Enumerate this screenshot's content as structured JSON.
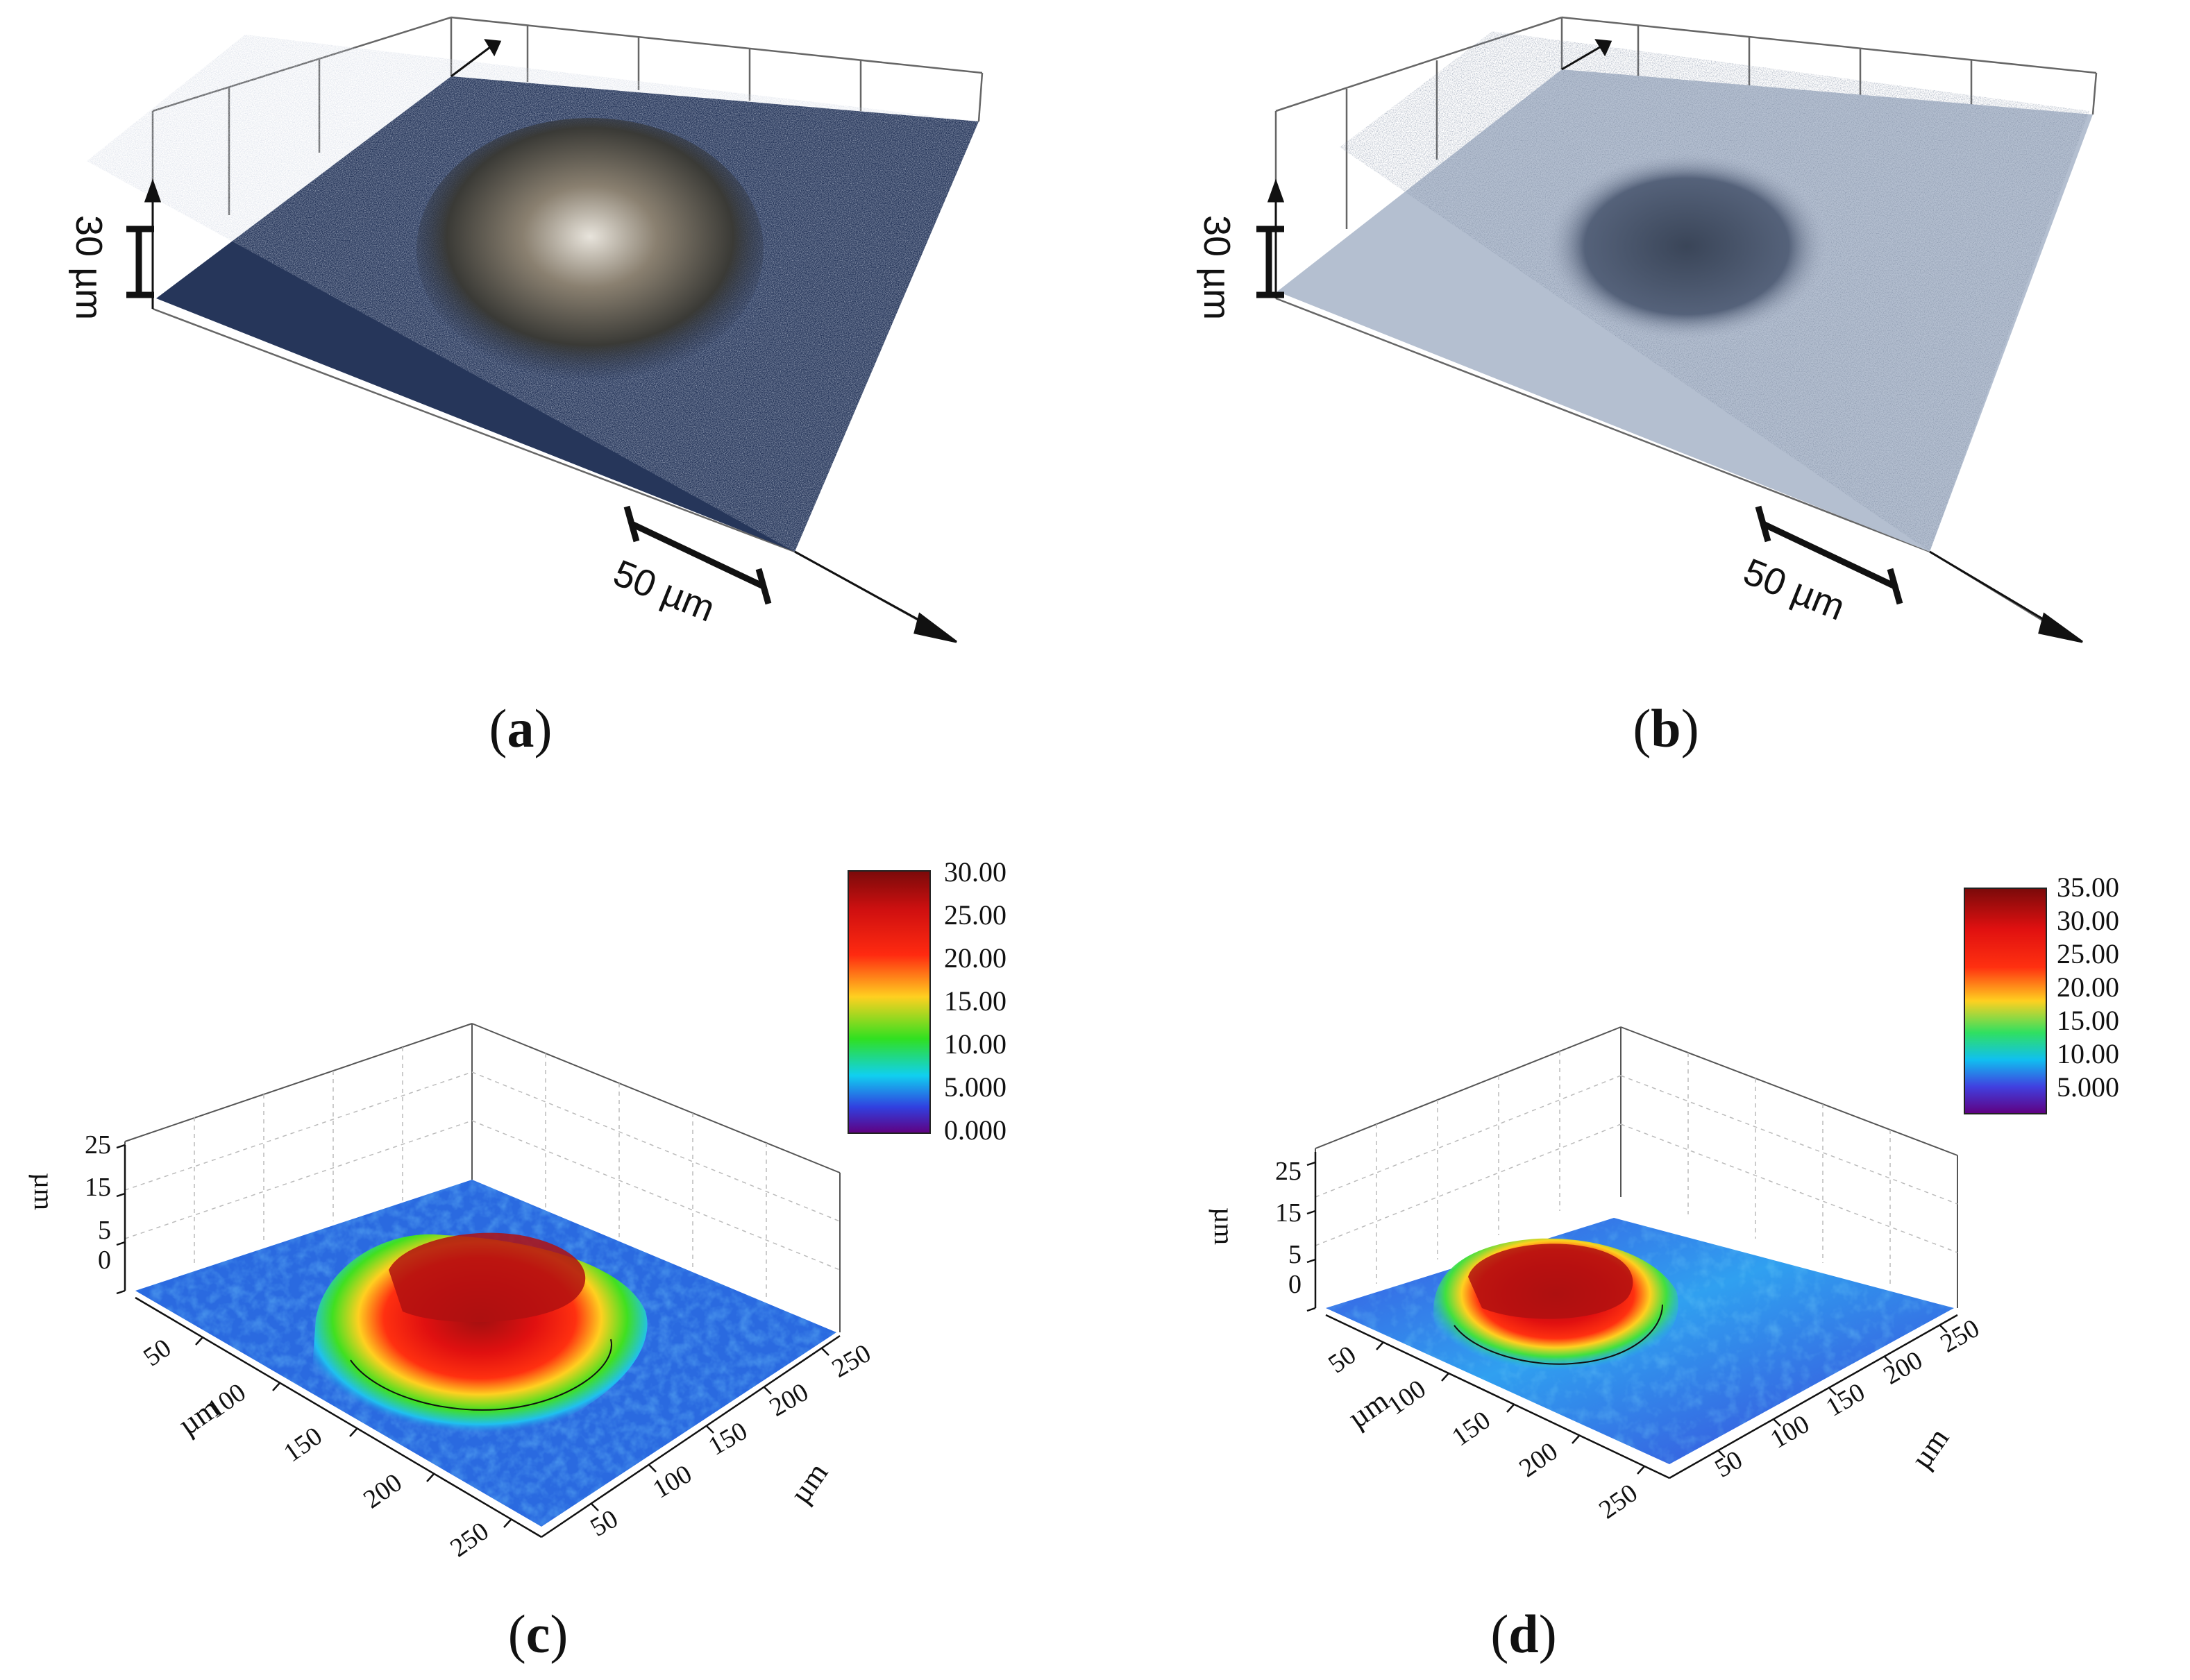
{
  "panels": [
    {
      "id": "a",
      "caption_open": "(",
      "caption_letter": "a",
      "caption_close": ")",
      "scale_z": "30 µm",
      "scale_xy": "50 µm"
    },
    {
      "id": "b",
      "caption_open": "(",
      "caption_letter": "b",
      "caption_close": ")",
      "scale_z": "30 µm",
      "scale_xy": "50 µm"
    },
    {
      "id": "c",
      "caption_open": "(",
      "caption_letter": "c",
      "caption_close": ")",
      "z_ticks": [
        "0",
        "5",
        "15",
        "25"
      ],
      "z_unit": "µm",
      "x_ticks": [
        "50",
        "100",
        "150",
        "200",
        "250"
      ],
      "x_unit": "µm",
      "y_ticks": [
        "50",
        "100",
        "150",
        "200",
        "250"
      ],
      "y_unit": "µm",
      "colorbar": [
        "30.00",
        "25.00",
        "20.00",
        "15.00",
        "10.00",
        "5.000",
        "0.000"
      ]
    },
    {
      "id": "d",
      "caption_open": "(",
      "caption_letter": "d",
      "caption_close": ")",
      "z_ticks": [
        "0",
        "5",
        "15",
        "25"
      ],
      "z_unit": "µm",
      "x_ticks": [
        "50",
        "100",
        "150",
        "200",
        "250"
      ],
      "x_unit": "µm",
      "y_ticks": [
        "50",
        "100",
        "150",
        "200",
        "250"
      ],
      "y_unit": "µm",
      "colorbar": [
        "35.00",
        "30.00",
        "25.00",
        "20.00",
        "15.00",
        "10.00",
        "5.000"
      ]
    }
  ],
  "colors": {
    "surface_a": "#2a3a5c",
    "surface_b": "#a8b4c8",
    "heat_low": "#4030c8",
    "heat_mid": "#20c0f0",
    "heat_high": "#e01010"
  }
}
